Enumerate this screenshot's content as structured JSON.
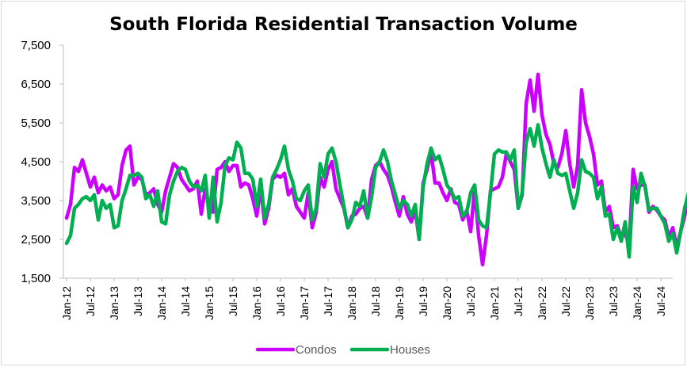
{
  "chart_data": {
    "type": "line",
    "title": "South Florida Residential Transaction Volume",
    "xlabel": "",
    "ylabel": "",
    "ylim": [
      1500,
      7500
    ],
    "y_ticks": [
      1500,
      2500,
      3500,
      4500,
      5500,
      6500,
      7500
    ],
    "y_tick_labels": [
      "1,500",
      "2,500",
      "3,500",
      "4,500",
      "5,500",
      "6,500",
      "7,500"
    ],
    "x_start": "2012-01",
    "x_tick_labels": [
      "Jan-12",
      "Jul-12",
      "Jan-13",
      "Jul-13",
      "Jan-14",
      "Jul-14",
      "Jan-15",
      "Jul-15",
      "Jan-16",
      "Jul-16",
      "Jan-17",
      "Jul-17",
      "Jan-18",
      "Jul-18",
      "Jan-19",
      "Jul-19",
      "Jan-20",
      "Jul-20",
      "Jan-21",
      "Jul-21",
      "Jan-22",
      "Jul-22",
      "Jan-23",
      "Jul-23",
      "Jan-24",
      "Jul-24"
    ],
    "grid": false,
    "legend": "bottom",
    "series": [
      {
        "name": "Condos",
        "color": "#CC00FF",
        "values": [
          3050,
          3400,
          4350,
          4250,
          4550,
          4200,
          3850,
          4100,
          3700,
          3900,
          3750,
          3850,
          3550,
          3650,
          4400,
          4800,
          4900,
          3900,
          4100,
          4050,
          3650,
          3700,
          3800,
          3400,
          3200,
          3750,
          4100,
          4450,
          4350,
          4050,
          3900,
          3750,
          3800,
          4000,
          3150,
          3800,
          3350,
          3200,
          4300,
          4350,
          4500,
          4250,
          4400,
          4400,
          3850,
          3950,
          3900,
          3550,
          3100,
          3850,
          2900,
          3300,
          4050,
          4150,
          4100,
          4200,
          3650,
          3800,
          3350,
          3200,
          3050,
          3700,
          2800,
          3200,
          4100,
          3850,
          4300,
          4500,
          3800,
          3550,
          3300,
          2800,
          3100,
          3150,
          3300,
          3350,
          3050,
          4050,
          4400,
          4500,
          4300,
          4150,
          3850,
          3450,
          3100,
          3600,
          3150,
          2950,
          3250,
          2500,
          3950,
          4300,
          4750,
          3950,
          3950,
          3700,
          3500,
          3800,
          3450,
          3400,
          3000,
          3250,
          2700,
          3800,
          2600,
          1850,
          2600,
          3750,
          3800,
          3850,
          4100,
          4700,
          4500,
          4300,
          3300,
          3650,
          6000,
          6600,
          5800,
          6750,
          5700,
          5200,
          4950,
          4450,
          4350,
          4700,
          5300,
          4450,
          3850,
          4400,
          6350,
          5500,
          5150,
          4700,
          3900,
          4000,
          3200,
          3350,
          2800,
          2850,
          2550,
          2650,
          2350,
          4300,
          3800,
          3900,
          3900,
          3200,
          3350,
          3250,
          3100,
          3000,
          2550,
          2800,
          2300,
          2700,
          3100,
          3600,
          3800,
          3750,
          3000,
          3100,
          2950
        ],
        "labels_name": "Condos"
      },
      {
        "name": "Houses",
        "color": "#00B050",
        "values": [
          2400,
          2600,
          3300,
          3400,
          3550,
          3600,
          3500,
          3650,
          3000,
          3500,
          3300,
          3400,
          2800,
          2850,
          3500,
          3800,
          4150,
          4150,
          4200,
          4100,
          3550,
          3650,
          3350,
          3750,
          2950,
          2900,
          3650,
          4000,
          4250,
          4350,
          4300,
          4000,
          3850,
          3900,
          3750,
          4150,
          3050,
          4100,
          2950,
          3450,
          4400,
          4600,
          4550,
          5000,
          4850,
          4200,
          4200,
          4050,
          3350,
          4050,
          3050,
          3400,
          4100,
          4300,
          4550,
          4900,
          4300,
          4000,
          3550,
          3500,
          3750,
          3900,
          3000,
          3300,
          4450,
          4100,
          4700,
          4850,
          4500,
          3900,
          3350,
          2800,
          3000,
          3450,
          3350,
          3750,
          3050,
          3600,
          4350,
          4500,
          4800,
          4500,
          4000,
          3650,
          3300,
          3500,
          3400,
          3100,
          3400,
          2500,
          3850,
          4450,
          4850,
          4550,
          4650,
          4300,
          3900,
          3750,
          3550,
          3600,
          3100,
          3200,
          3700,
          3900,
          3000,
          2850,
          2800,
          3700,
          4700,
          4800,
          4750,
          4750,
          4550,
          4800,
          3300,
          3700,
          5000,
          5350,
          4900,
          5450,
          4850,
          4450,
          4100,
          4550,
          4200,
          4150,
          4200,
          3750,
          3300,
          3700,
          4550,
          4250,
          4200,
          4100,
          3550,
          3850,
          3100,
          3150,
          2500,
          2800,
          2450,
          2950,
          2050,
          3850,
          3450,
          4200,
          3850,
          3250,
          3300,
          3300,
          3100,
          2900,
          2450,
          2650,
          2150,
          2700,
          3300,
          3700,
          3800,
          3750,
          3350,
          3300,
          3250
        ],
        "labels_name": "Houses"
      }
    ]
  }
}
